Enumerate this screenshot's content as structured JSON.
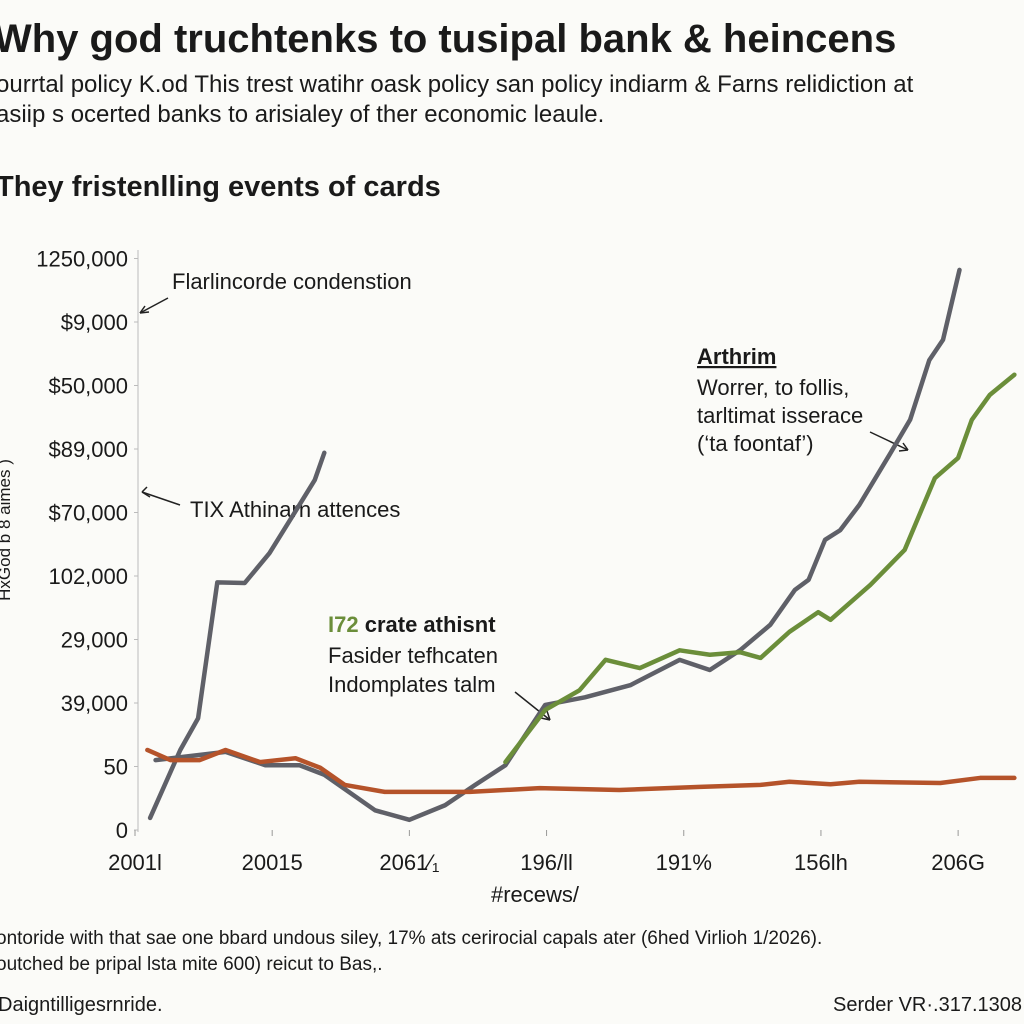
{
  "header": {
    "title": "Why god truchtenks to tusipal bank & heincens",
    "subtitle": [
      "ourrtal policy K.od This trest watihr oask policy san policy indiarm & Farns relidiction at",
      "asiip s ocerted banks to arisialey of ther economic leaule."
    ],
    "section": "They fristenlling events of cards"
  },
  "chart_data": {
    "type": "line",
    "y_label": "HxGod b 8 aimes )",
    "x_label": "#recews/",
    "xlim": [
      0,
      6.4
    ],
    "xticks": [
      0,
      1,
      2,
      3,
      4,
      5,
      6
    ],
    "xtick_labels": [
      "2001l",
      "20015",
      "2061⁄₁",
      "196/ll",
      "191%",
      "156lh",
      "206G"
    ],
    "ylim": [
      0,
      9
    ],
    "yticks": [
      0,
      1,
      2,
      3,
      4,
      5,
      6,
      7,
      8,
      9
    ],
    "ytick_labels": [
      "0",
      "50",
      "39,000",
      "29,000",
      "102,000",
      "$70,000",
      "$89,000",
      "$50,000",
      "$9,000",
      "1250,000"
    ],
    "series": [
      {
        "color": "#5f6068",
        "x": [
          0.11,
          0.33,
          0.46,
          0.6,
          0.8,
          0.98,
          1.13,
          1.31,
          1.38
        ],
        "values": [
          0.19,
          1.26,
          1.76,
          3.9,
          3.89,
          4.36,
          4.88,
          5.51,
          5.94
        ]
      },
      {
        "color": "#5f6068",
        "x": [
          0.15,
          0.66,
          0.95,
          1.2,
          1.38,
          1.75,
          2.0,
          2.26,
          2.48,
          2.7,
          2.99,
          3.28,
          3.61,
          3.97,
          4.19,
          4.41,
          4.63,
          4.81,
          4.91,
          5.03,
          5.14,
          5.28,
          5.5,
          5.65,
          5.79,
          5.89,
          6.01
        ],
        "values": [
          1.1,
          1.23,
          1.02,
          1.02,
          0.87,
          0.31,
          0.16,
          0.39,
          0.71,
          1.02,
          1.97,
          2.09,
          2.28,
          2.68,
          2.52,
          2.83,
          3.23,
          3.78,
          3.94,
          4.57,
          4.72,
          5.12,
          5.91,
          6.46,
          7.4,
          7.72,
          8.82
        ]
      },
      {
        "color": "#6b8e3a",
        "x": [
          2.7,
          2.99,
          3.24,
          3.43,
          3.68,
          3.97,
          4.19,
          4.41,
          4.56,
          4.77,
          4.98,
          5.07,
          5.36,
          5.61,
          5.83,
          6.0,
          6.1,
          6.23,
          6.41
        ],
        "values": [
          1.07,
          1.89,
          2.2,
          2.68,
          2.55,
          2.83,
          2.76,
          2.8,
          2.71,
          3.12,
          3.43,
          3.31,
          3.86,
          4.41,
          5.54,
          5.86,
          6.46,
          6.85,
          7.17
        ]
      },
      {
        "color": "#b5532a",
        "x": [
          0.09,
          0.26,
          0.47,
          0.66,
          0.91,
          1.17,
          1.35,
          1.53,
          1.82,
          2.44,
          2.95,
          3.53,
          4.12,
          4.56,
          4.77,
          5.07,
          5.28,
          5.87,
          6.16,
          6.41
        ],
        "values": [
          1.26,
          1.1,
          1.1,
          1.26,
          1.07,
          1.13,
          0.98,
          0.71,
          0.6,
          0.6,
          0.66,
          0.63,
          0.68,
          0.71,
          0.76,
          0.72,
          0.76,
          0.74,
          0.82,
          0.82
        ]
      }
    ],
    "annotations": [
      {
        "lines": [
          "Flarlincorde condenstion"
        ]
      },
      {
        "lines": [
          "TIX Athinarn attences"
        ]
      },
      {
        "label": "I72",
        "title": "crate athisnt",
        "lines": [
          "Fasider tefhcaten",
          "Indomplates talm"
        ]
      },
      {
        "title": "Arthrim",
        "lines": [
          "Worrer, to follis,",
          "tarltimat isserace",
          "(‘ta foontaf’)"
        ]
      }
    ]
  },
  "footer": {
    "notes": [
      "ontoride with that sae one bbard undous siley, 17% ats cerirocial capals ater (6hed Virlioh 1/2026).",
      "outched be pripal lsta mite 600) reicut to Bas,."
    ],
    "left": "Daigntilligesrnride.",
    "right": "Serder VR·.317.1308"
  }
}
